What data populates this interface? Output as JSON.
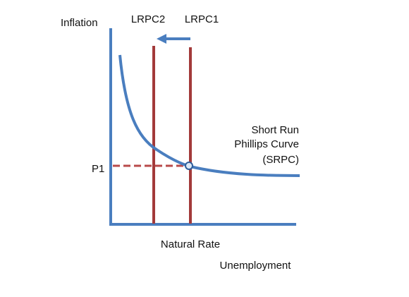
{
  "labels": {
    "y_axis": "Inflation",
    "x_axis": "Unemployment",
    "natural_rate": "Natural Rate",
    "price_level": "P1",
    "lrpc2": "LRPC2",
    "lrpc1": "LRPC1",
    "srpc": [
      "Short Run",
      "Phillips Curve",
      "(SRPC)"
    ]
  }
}
